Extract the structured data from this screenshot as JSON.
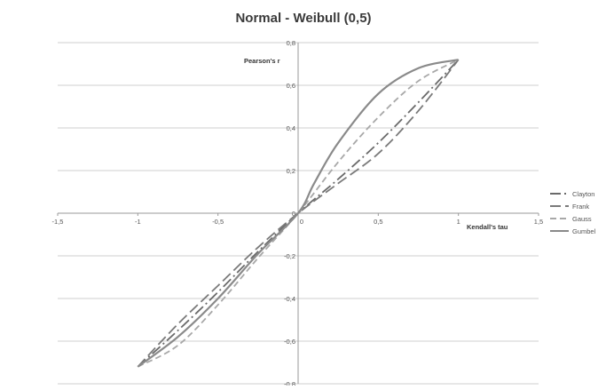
{
  "chart_data": {
    "type": "line",
    "title": "Normal - Weibull (0,5)",
    "xlabel": "Kendall's tau",
    "ylabel": "Pearson's r",
    "xlim": [
      -1.5,
      1.5
    ],
    "ylim": [
      -0.8,
      0.8
    ],
    "x_ticks": [
      -1.5,
      -1,
      -0.5,
      0,
      0.5,
      1,
      1.5
    ],
    "x_tick_labels": [
      "-1,5",
      "-1",
      "-0,5",
      "0",
      "0,5",
      "1",
      "1,5"
    ],
    "y_ticks": [
      -0.8,
      -0.6,
      -0.4,
      -0.2,
      0,
      0.2,
      0.4,
      0.6,
      0.8
    ],
    "y_tick_labels": [
      "-0,8",
      "-0,6",
      "-0,4",
      "-0,2",
      "0",
      "0,2",
      "0,4",
      "0,6",
      "0,8"
    ],
    "grid": "horizontal",
    "legend_position": "right",
    "series": [
      {
        "name": "Clayton",
        "color": "#6a6a6a",
        "dash": "long-dash-dot",
        "x": [
          -1,
          -0.75,
          -0.5,
          -0.25,
          0,
          0.25,
          0.5,
          0.75,
          1
        ],
        "y": [
          -0.72,
          -0.55,
          -0.37,
          -0.18,
          0,
          0.16,
          0.33,
          0.52,
          0.72
        ]
      },
      {
        "name": "Frank",
        "color": "#7a7a7a",
        "dash": "long-dash",
        "x": [
          -1,
          -0.75,
          -0.5,
          -0.25,
          0,
          0.25,
          0.5,
          0.75,
          1
        ],
        "y": [
          -0.72,
          -0.52,
          -0.34,
          -0.16,
          0,
          0.14,
          0.28,
          0.48,
          0.72
        ]
      },
      {
        "name": "Gauss",
        "color": "#a8a8a8",
        "dash": "dash",
        "x": [
          -1,
          -0.75,
          -0.5,
          -0.25,
          0,
          0.25,
          0.5,
          0.75,
          1
        ],
        "y": [
          -0.72,
          -0.62,
          -0.43,
          -0.21,
          0,
          0.24,
          0.45,
          0.62,
          0.72
        ]
      },
      {
        "name": "Gumbel",
        "color": "#8a8a8a",
        "dash": "solid",
        "x": [
          -1,
          -0.75,
          -0.5,
          -0.25,
          0,
          0.1,
          0.25,
          0.5,
          0.75,
          1
        ],
        "y": [
          -0.72,
          -0.58,
          -0.4,
          -0.19,
          0,
          0.14,
          0.33,
          0.56,
          0.68,
          0.72
        ]
      }
    ]
  }
}
